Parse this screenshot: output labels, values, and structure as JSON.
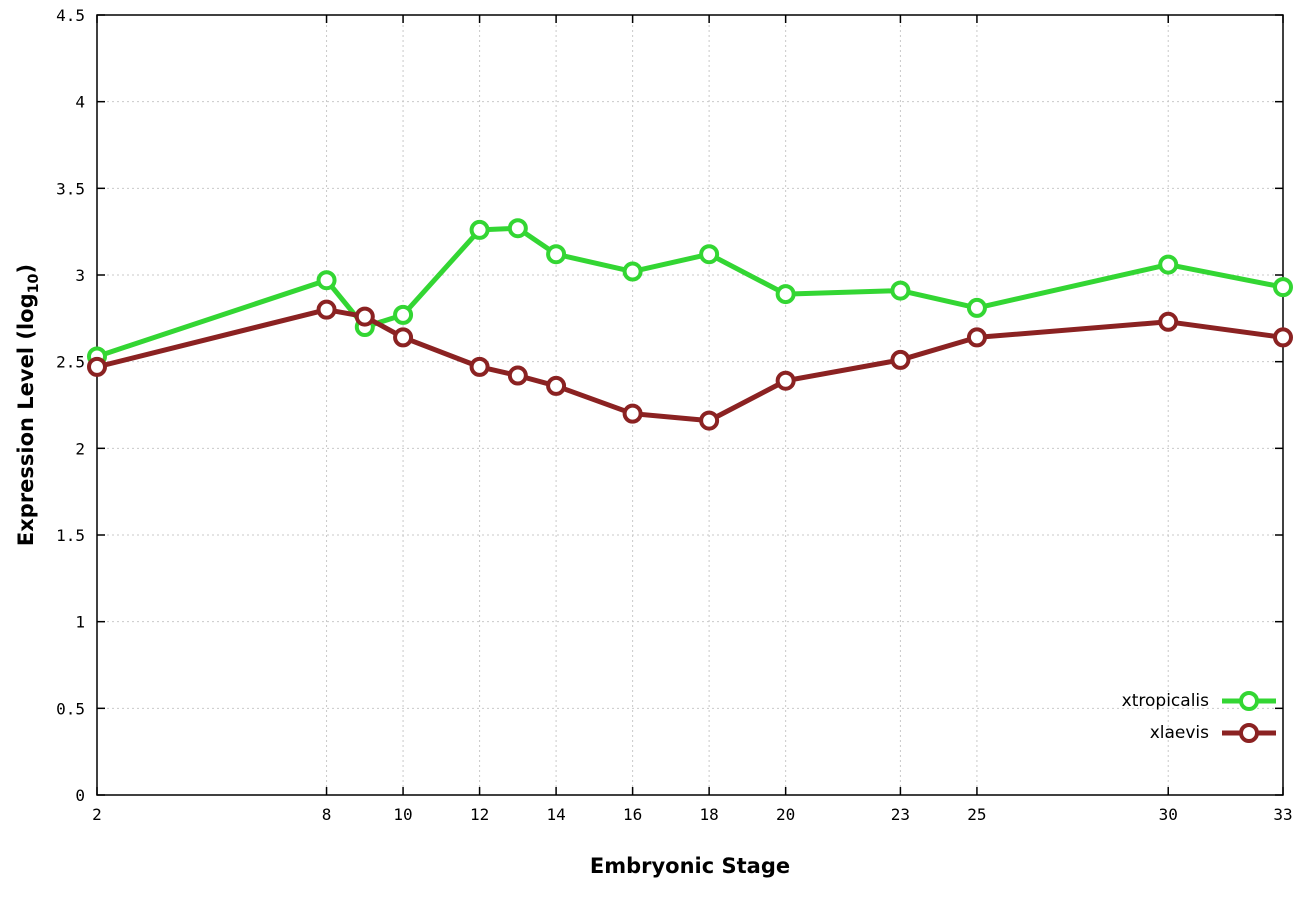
{
  "chart_data": {
    "type": "line",
    "x": [
      2,
      8,
      9,
      10,
      12,
      13,
      14,
      16,
      18,
      20,
      23,
      25,
      30,
      33
    ],
    "series": [
      {
        "name": "xtropicalis",
        "color": "#33d633",
        "values": [
          2.53,
          2.97,
          2.7,
          2.77,
          3.26,
          3.27,
          3.12,
          3.02,
          3.12,
          2.89,
          2.91,
          2.81,
          3.06,
          2.93
        ]
      },
      {
        "name": "xlaevis",
        "color": "#8b2222",
        "values": [
          2.47,
          2.8,
          2.76,
          2.64,
          2.47,
          2.42,
          2.36,
          2.2,
          2.16,
          2.39,
          2.51,
          2.64,
          2.73,
          2.64
        ]
      }
    ],
    "title": "",
    "xlabel": "Embryonic Stage",
    "ylabel_prefix": "Expression Level (log",
    "ylabel_sub": "10",
    "ylabel_suffix": ")",
    "xlim": [
      2,
      33
    ],
    "ylim": [
      0,
      4.5
    ],
    "xticks": [
      2,
      8,
      10,
      12,
      14,
      16,
      18,
      20,
      23,
      25,
      30,
      33
    ],
    "yticks": [
      0,
      0.5,
      1,
      1.5,
      2,
      2.5,
      3,
      3.5,
      4,
      4.5
    ],
    "grid": true,
    "legend_position": "bottom-right"
  },
  "legend": {
    "items": [
      {
        "label": "xtropicalis"
      },
      {
        "label": "xlaevis"
      }
    ]
  }
}
